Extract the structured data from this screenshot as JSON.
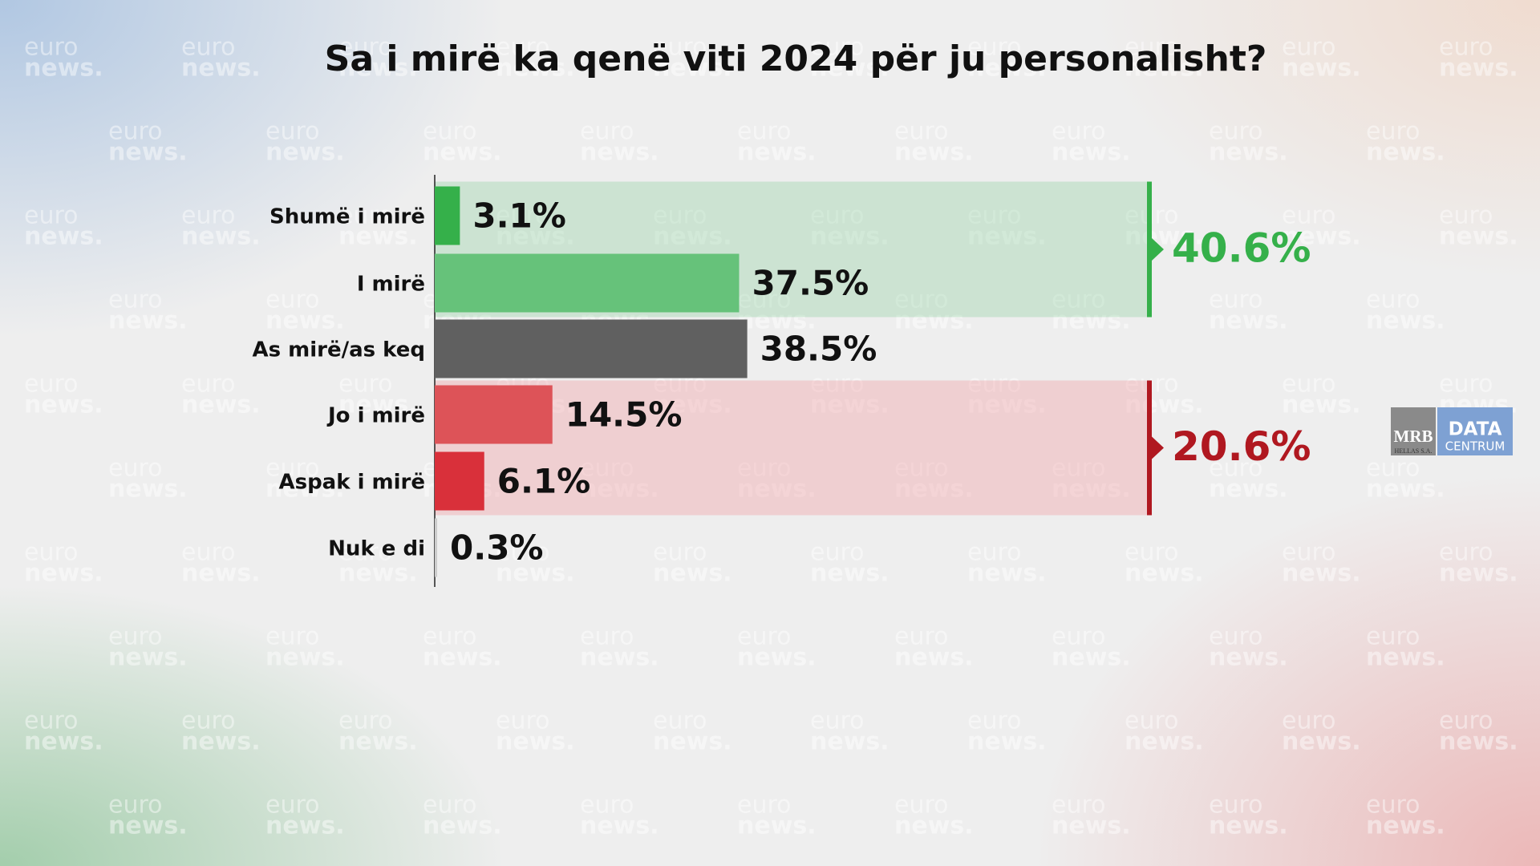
{
  "chart_data": {
    "type": "bar",
    "orientation": "horizontal",
    "title": "Sa i mirë ka qenë viti 2024 për ju personalisht?",
    "categories": [
      "Shumë i mirë",
      "I mirë",
      "As mirë/as keq",
      "Jo i mirë",
      "Aspak i mirë",
      "Nuk e di"
    ],
    "values": [
      3.1,
      37.5,
      38.5,
      14.5,
      6.1,
      0.3
    ],
    "value_labels": [
      "3.1%",
      "37.5%",
      "38.5%",
      "14.5%",
      "6.1%",
      "0.3%"
    ],
    "colors": [
      "#35b04a",
      "#66c27a",
      "#606060",
      "#dd5358",
      "#d9303a",
      "#cccccc"
    ],
    "xlim": [
      0,
      100
    ],
    "groups": [
      {
        "value": 40.6,
        "value_label": "40.6%",
        "color": "#35b04a",
        "shade": "rgba(120,200,140,0.28)"
      },
      {
        "value": 20.6,
        "value_label": "20.6%",
        "color": "#b01820",
        "shade": "rgba(240,150,155,0.35)"
      }
    ]
  },
  "watermark": {
    "line1": "euro",
    "line2": "news."
  },
  "logo": {
    "left": "MRB",
    "left_sub": "HELLAS S.A.",
    "right": "DATA",
    "right_sub": "CENTRUM"
  }
}
